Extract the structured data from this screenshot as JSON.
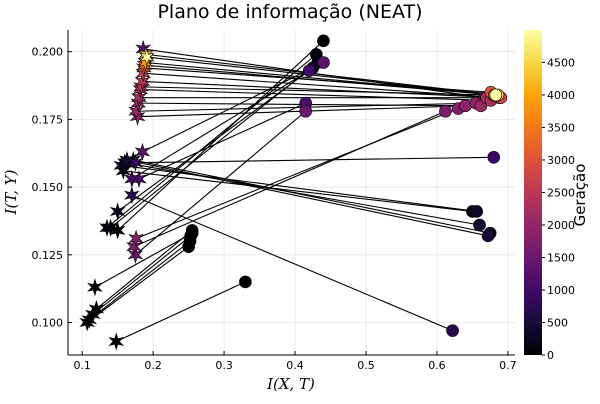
{
  "chart_data": {
    "type": "scatter",
    "title": "Plano de informação (NEAT)",
    "xlabel": "I(X, T)",
    "ylabel": "I(T, Y)",
    "xlim": [
      0.08,
      0.71
    ],
    "ylim": [
      0.088,
      0.208
    ],
    "xticks": [
      0.1,
      0.2,
      0.3,
      0.4,
      0.5,
      0.6,
      0.7
    ],
    "xtick_labels": [
      "0.1",
      "0.2",
      "0.3",
      "0.4",
      "0.5",
      "0.6",
      "0.7"
    ],
    "yticks": [
      0.1,
      0.125,
      0.15,
      0.175,
      0.2
    ],
    "ytick_labels": [
      "0.100",
      "0.125",
      "0.150",
      "0.175",
      "0.200"
    ],
    "grid": true,
    "legend": "none",
    "colorbar": {
      "label": "Geração",
      "colormap": "inferno",
      "range": [
        0,
        4999
      ],
      "ticks": [
        0,
        500,
        1000,
        1500,
        2000,
        2500,
        3000,
        3500,
        4000,
        4500
      ],
      "tick_labels": [
        "0",
        "500",
        "1000",
        "1500",
        "2000",
        "2500",
        "3000",
        "3500",
        "4000",
        "4500"
      ]
    },
    "marker_legend": {
      "star": "point plotted at (encoder I(X,T), I(T,Y))",
      "circle": "point plotted at (decoder I(X,T), I(T,Y))"
    },
    "pairs": [
      {
        "star": [
          0.148,
          0.093
        ],
        "circle": [
          0.33,
          0.115
        ],
        "gen": 0
      },
      {
        "star": [
          0.107,
          0.1
        ],
        "circle": [
          0.25,
          0.128
        ],
        "gen": 0
      },
      {
        "star": [
          0.11,
          0.101
        ],
        "circle": [
          0.252,
          0.13
        ],
        "gen": 0
      },
      {
        "star": [
          0.115,
          0.103
        ],
        "circle": [
          0.253,
          0.132
        ],
        "gen": 0
      },
      {
        "star": [
          0.12,
          0.105
        ],
        "circle": [
          0.255,
          0.134
        ],
        "gen": 0
      },
      {
        "star": [
          0.118,
          0.113
        ],
        "circle": [
          0.255,
          0.133
        ],
        "gen": 0
      },
      {
        "star": [
          0.15,
          0.134
        ],
        "circle": [
          0.44,
          0.204
        ],
        "gen": 0
      },
      {
        "star": [
          0.14,
          0.135
        ],
        "circle": [
          0.432,
          0.196
        ],
        "gen": 0
      },
      {
        "star": [
          0.135,
          0.135
        ],
        "circle": [
          0.43,
          0.199
        ],
        "gen": 100
      },
      {
        "star": [
          0.15,
          0.141
        ],
        "circle": [
          0.425,
          0.194
        ],
        "gen": 200
      },
      {
        "star": [
          0.17,
          0.147
        ],
        "circle": [
          0.622,
          0.097
        ],
        "gen": 700
      },
      {
        "star": [
          0.158,
          0.156
        ],
        "circle": [
          0.65,
          0.141
        ],
        "gen": 200
      },
      {
        "star": [
          0.155,
          0.158
        ],
        "circle": [
          0.656,
          0.141
        ],
        "gen": 300
      },
      {
        "star": [
          0.16,
          0.159
        ],
        "circle": [
          0.66,
          0.136
        ],
        "gen": 400
      },
      {
        "star": [
          0.163,
          0.16
        ],
        "circle": [
          0.672,
          0.132
        ],
        "gen": 500
      },
      {
        "star": [
          0.172,
          0.16
        ],
        "circle": [
          0.675,
          0.133
        ],
        "gen": 300
      },
      {
        "star": [
          0.175,
          0.159
        ],
        "circle": [
          0.68,
          0.161
        ],
        "gen": 900
      },
      {
        "star": [
          0.185,
          0.163
        ],
        "circle": [
          0.44,
          0.196
        ],
        "gen": 1300
      },
      {
        "star": [
          0.17,
          0.153
        ],
        "circle": [
          0.42,
          0.193
        ],
        "gen": 1000
      },
      {
        "star": [
          0.18,
          0.153
        ],
        "circle": [
          0.415,
          0.181
        ],
        "gen": 1100
      },
      {
        "star": [
          0.175,
          0.125
        ],
        "circle": [
          0.415,
          0.178
        ],
        "gen": 1500
      },
      {
        "star": [
          0.173,
          0.128
        ],
        "circle": [
          0.612,
          0.178
        ],
        "gen": 1700
      },
      {
        "star": [
          0.176,
          0.131
        ],
        "circle": [
          0.63,
          0.179
        ],
        "gen": 1800
      },
      {
        "star": [
          0.178,
          0.176
        ],
        "circle": [
          0.64,
          0.18
        ],
        "gen": 1900
      },
      {
        "star": [
          0.176,
          0.178
        ],
        "circle": [
          0.655,
          0.181
        ],
        "gen": 2000
      },
      {
        "star": [
          0.179,
          0.181
        ],
        "circle": [
          0.662,
          0.18
        ],
        "gen": 2100
      },
      {
        "star": [
          0.18,
          0.183
        ],
        "circle": [
          0.67,
          0.183
        ],
        "gen": 2200
      },
      {
        "star": [
          0.182,
          0.186
        ],
        "circle": [
          0.676,
          0.182
        ],
        "gen": 2300
      },
      {
        "star": [
          0.183,
          0.187
        ],
        "circle": [
          0.68,
          0.184
        ],
        "gen": 2400
      },
      {
        "star": [
          0.185,
          0.189
        ],
        "circle": [
          0.688,
          0.183
        ],
        "gen": 2500
      },
      {
        "star": [
          0.186,
          0.192
        ],
        "circle": [
          0.69,
          0.183
        ],
        "gen": 2700
      },
      {
        "star": [
          0.187,
          0.194
        ],
        "circle": [
          0.676,
          0.185
        ],
        "gen": 3000
      },
      {
        "star": [
          0.188,
          0.195
        ],
        "circle": [
          0.681,
          0.184
        ],
        "gen": 3400
      },
      {
        "star": [
          0.189,
          0.196
        ],
        "circle": [
          0.684,
          0.184
        ],
        "gen": 3900
      },
      {
        "star": [
          0.19,
          0.199
        ],
        "circle": [
          0.686,
          0.184
        ],
        "gen": 4300
      },
      {
        "star": [
          0.191,
          0.198
        ],
        "circle": [
          0.683,
          0.184
        ],
        "gen": 4999
      },
      {
        "star": [
          0.186,
          0.201
        ],
        "circle": [
          0.667,
          0.183
        ],
        "gen": 1200
      }
    ]
  }
}
